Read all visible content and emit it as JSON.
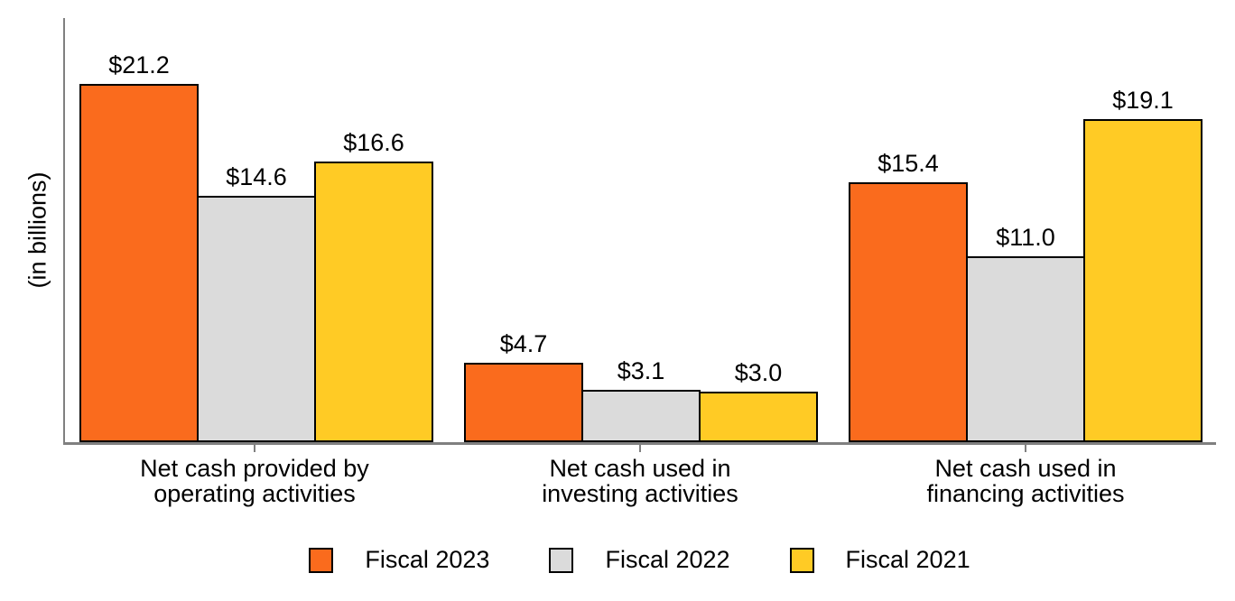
{
  "chart_data": {
    "type": "bar",
    "title": "",
    "xlabel": "",
    "ylabel": "(in billions)",
    "ylim": [
      0,
      25.1
    ],
    "grid": false,
    "legend_position": "bottom",
    "categories": [
      "Net cash provided by\noperating activities",
      "Net cash used in\ninvesting activities",
      "Net cash used in\nfinancing activities"
    ],
    "series": [
      {
        "name": "Fiscal 2023",
        "color": "#FA6B1D",
        "values": [
          21.2,
          4.7,
          15.4
        ],
        "value_labels": [
          "$21.2",
          "$4.7",
          "$15.4"
        ]
      },
      {
        "name": "Fiscal 2022",
        "color": "#DBDBDB",
        "values": [
          14.6,
          3.1,
          11.0
        ],
        "value_labels": [
          "$14.6",
          "$3.1",
          "$11.0"
        ]
      },
      {
        "name": "Fiscal 2021",
        "color": "#FFCB25",
        "values": [
          16.6,
          3.0,
          19.1
        ],
        "value_labels": [
          "$16.6",
          "$3.0",
          "$19.1"
        ]
      }
    ],
    "bar_outline_color": "#000000",
    "axis_color": "#808080",
    "text_color": "#000000"
  }
}
